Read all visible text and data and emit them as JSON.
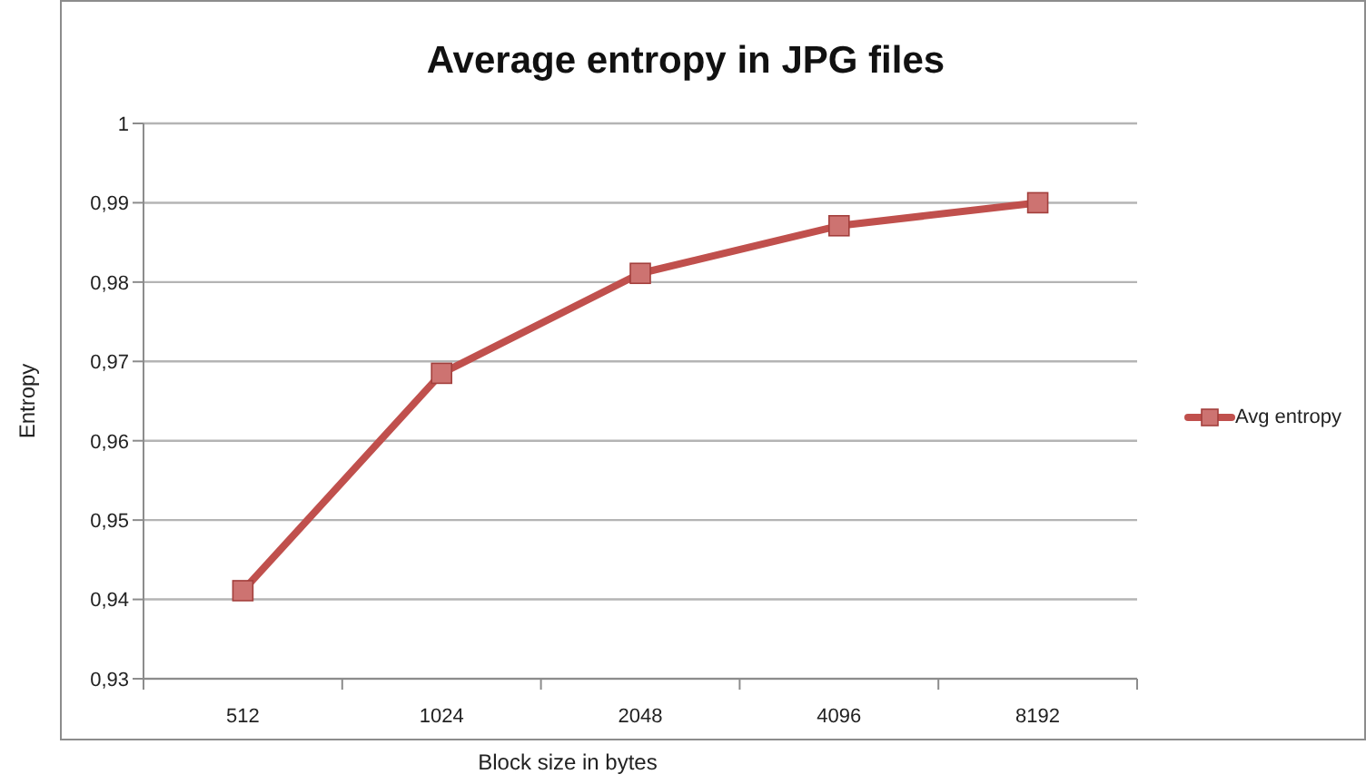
{
  "chart_data": {
    "type": "line",
    "title": "Average entropy in JPG files",
    "xlabel": "Block size in bytes",
    "ylabel": "Entropy",
    "categories": [
      "512",
      "1024",
      "2048",
      "4096",
      "8192"
    ],
    "series": [
      {
        "name": "Avg entropy",
        "color": "#c0504d",
        "values": [
          0.9411,
          0.9685,
          0.9811,
          0.9871,
          0.99
        ]
      }
    ],
    "ylim": [
      0.93,
      1
    ],
    "yticks": [
      {
        "value": 0.93,
        "label": "0,93"
      },
      {
        "value": 0.94,
        "label": "0,94"
      },
      {
        "value": 0.95,
        "label": "0,95"
      },
      {
        "value": 0.96,
        "label": "0,96"
      },
      {
        "value": 0.97,
        "label": "0,97"
      },
      {
        "value": 0.98,
        "label": "0,98"
      },
      {
        "value": 0.99,
        "label": "0,99"
      },
      1
    ],
    "grid": "y",
    "legend": "right",
    "marker": "square",
    "line_style": "solid"
  }
}
